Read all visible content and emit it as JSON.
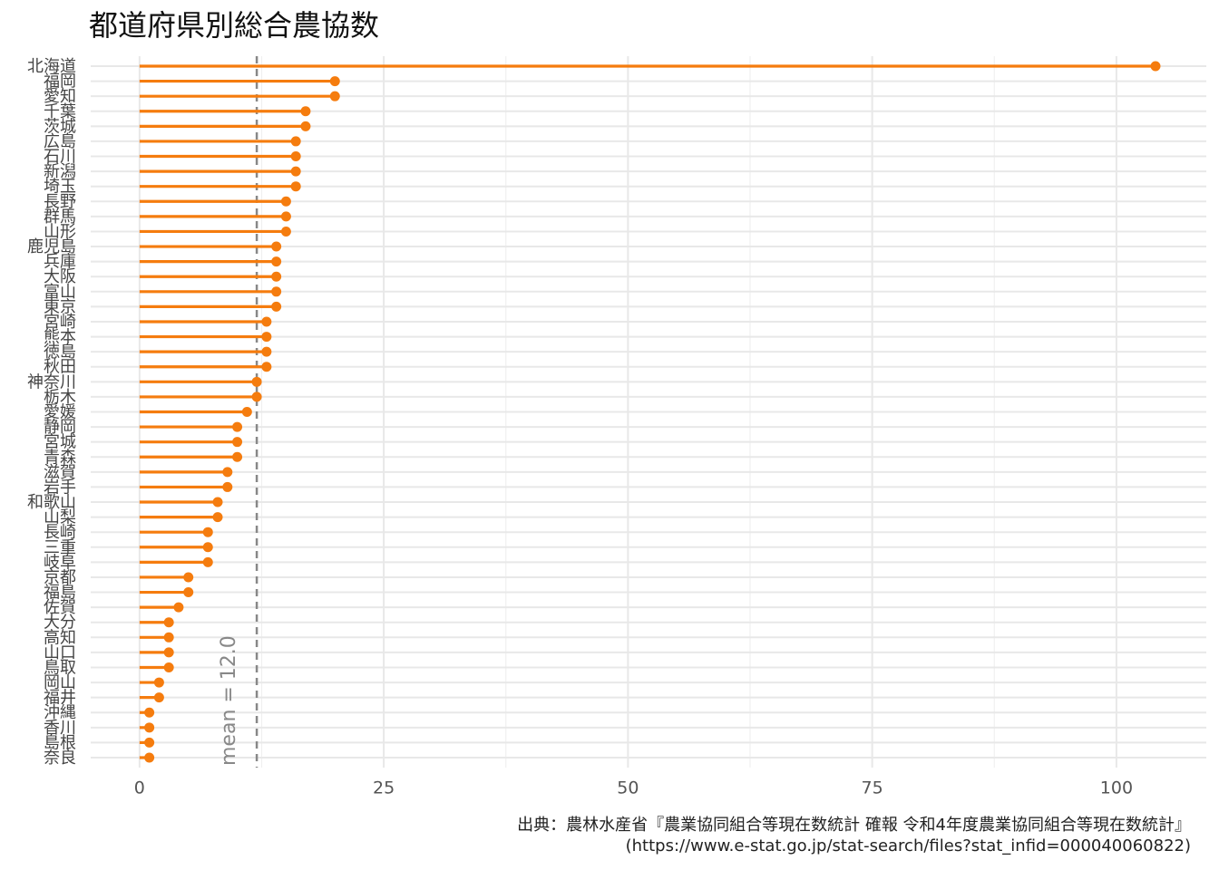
{
  "chart_data": {
    "type": "lollipop",
    "title": "都道府県別総合農協数",
    "categories": [
      "北海道",
      "福岡",
      "愛知",
      "千葉",
      "茨城",
      "広島",
      "石川",
      "新潟",
      "埼玉",
      "長野",
      "群馬",
      "山形",
      "鹿児島",
      "兵庫",
      "大阪",
      "富山",
      "東京",
      "宮崎",
      "熊本",
      "徳島",
      "秋田",
      "神奈川",
      "栃木",
      "愛媛",
      "静岡",
      "宮城",
      "青森",
      "滋賀",
      "岩手",
      "和歌山",
      "山梨",
      "長崎",
      "三重",
      "岐阜",
      "京都",
      "福島",
      "佐賀",
      "大分",
      "高知",
      "山口",
      "鳥取",
      "岡山",
      "福井",
      "沖縄",
      "香川",
      "島根",
      "奈良"
    ],
    "values": [
      104,
      20,
      20,
      17,
      17,
      16,
      16,
      16,
      16,
      15,
      15,
      15,
      14,
      14,
      14,
      14,
      14,
      13,
      13,
      13,
      13,
      12,
      12,
      11,
      10,
      10,
      10,
      9,
      9,
      8,
      8,
      7,
      7,
      7,
      5,
      5,
      4,
      3,
      3,
      3,
      3,
      2,
      2,
      1,
      1,
      1,
      1
    ],
    "color": "#f57c0e",
    "xlim": [
      -5,
      109.2
    ],
    "xticks": [
      0,
      25,
      50,
      75,
      100
    ],
    "minor_xticks": [
      12.5,
      37.5,
      62.5,
      87.5
    ],
    "grid": true,
    "mean": 12.0,
    "mean_label": "mean = 12.0",
    "caption": [
      "出典：農林水産省『農業協同組合等現在数統計 確報 令和4年度農業協同組合等現在数統計』",
      "(https://www.e-stat.go.jp/stat-search/files?stat_infid=000040060822)"
    ]
  }
}
